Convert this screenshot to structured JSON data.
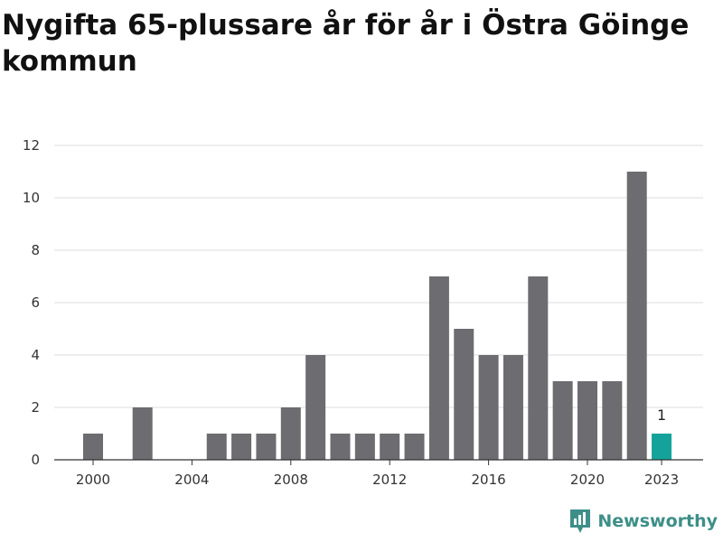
{
  "chart_data": {
    "type": "bar",
    "title": "Nygifta 65-plussare år för år i Östra Göinge kommun",
    "xlabel": "",
    "ylabel": "",
    "categories": [
      "2000",
      "2001",
      "2002",
      "2003",
      "2004",
      "2005",
      "2006",
      "2007",
      "2008",
      "2009",
      "2010",
      "2011",
      "2012",
      "2013",
      "2014",
      "2015",
      "2016",
      "2017",
      "2018",
      "2019",
      "2020",
      "2021",
      "2022",
      "2023"
    ],
    "values": [
      1,
      0,
      2,
      0,
      0,
      1,
      1,
      1,
      2,
      4,
      1,
      1,
      1,
      1,
      7,
      5,
      4,
      4,
      7,
      3,
      3,
      3,
      11,
      1
    ],
    "highlight_index": 23,
    "highlight_label": "1",
    "x_tick_labels": [
      "2000",
      "2004",
      "2008",
      "2012",
      "2016",
      "2020",
      "2023"
    ],
    "y_ticks": [
      0,
      2,
      4,
      6,
      8,
      10,
      12
    ],
    "ylim": [
      0,
      12
    ],
    "grid": true,
    "bar_color": "#6d6c70",
    "highlight_color": "#13a39a"
  },
  "brand": {
    "name": "Newsworthy",
    "color": "#3d8f88"
  }
}
